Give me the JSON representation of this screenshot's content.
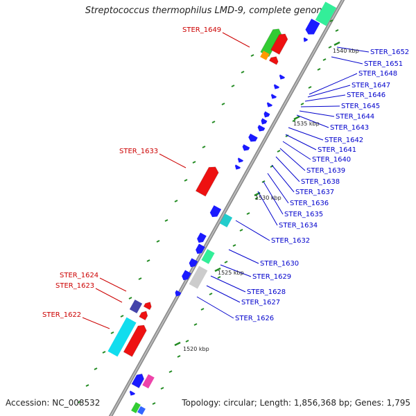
{
  "title": "Streptococcus thermophilus LMD-9, complete genome",
  "accession": "Accession: NC_008532",
  "topology": "Topology: circular; Length: 1,856,368 bp; Genes: 1,795",
  "colors": {
    "backbone": "#999999",
    "label_red": "#cc0000",
    "label_blue": "#0000cc",
    "tick": "#228b22"
  },
  "kbp_labels": [
    "1540 kbp",
    "1535 kbp",
    "1530 kbp",
    "1525 kbp",
    "1520 kbp"
  ],
  "genes_left": [
    "STER_1649",
    "STER_1633",
    "STER_1624",
    "STER_1623",
    "STER_1622"
  ],
  "genes_right": [
    "STER_1652",
    "STER_1651",
    "STER_1648",
    "STER_1647",
    "STER_1646",
    "STER_1645",
    "STER_1644",
    "STER_1643",
    "STER_1642",
    "STER_1641",
    "STER_1640",
    "STER_1639",
    "STER_1638",
    "STER_1637",
    "STER_1636",
    "STER_1635",
    "STER_1634",
    "STER_1632",
    "STER_1630",
    "STER_1629",
    "STER_1628",
    "STER_1627",
    "STER_1626"
  ]
}
